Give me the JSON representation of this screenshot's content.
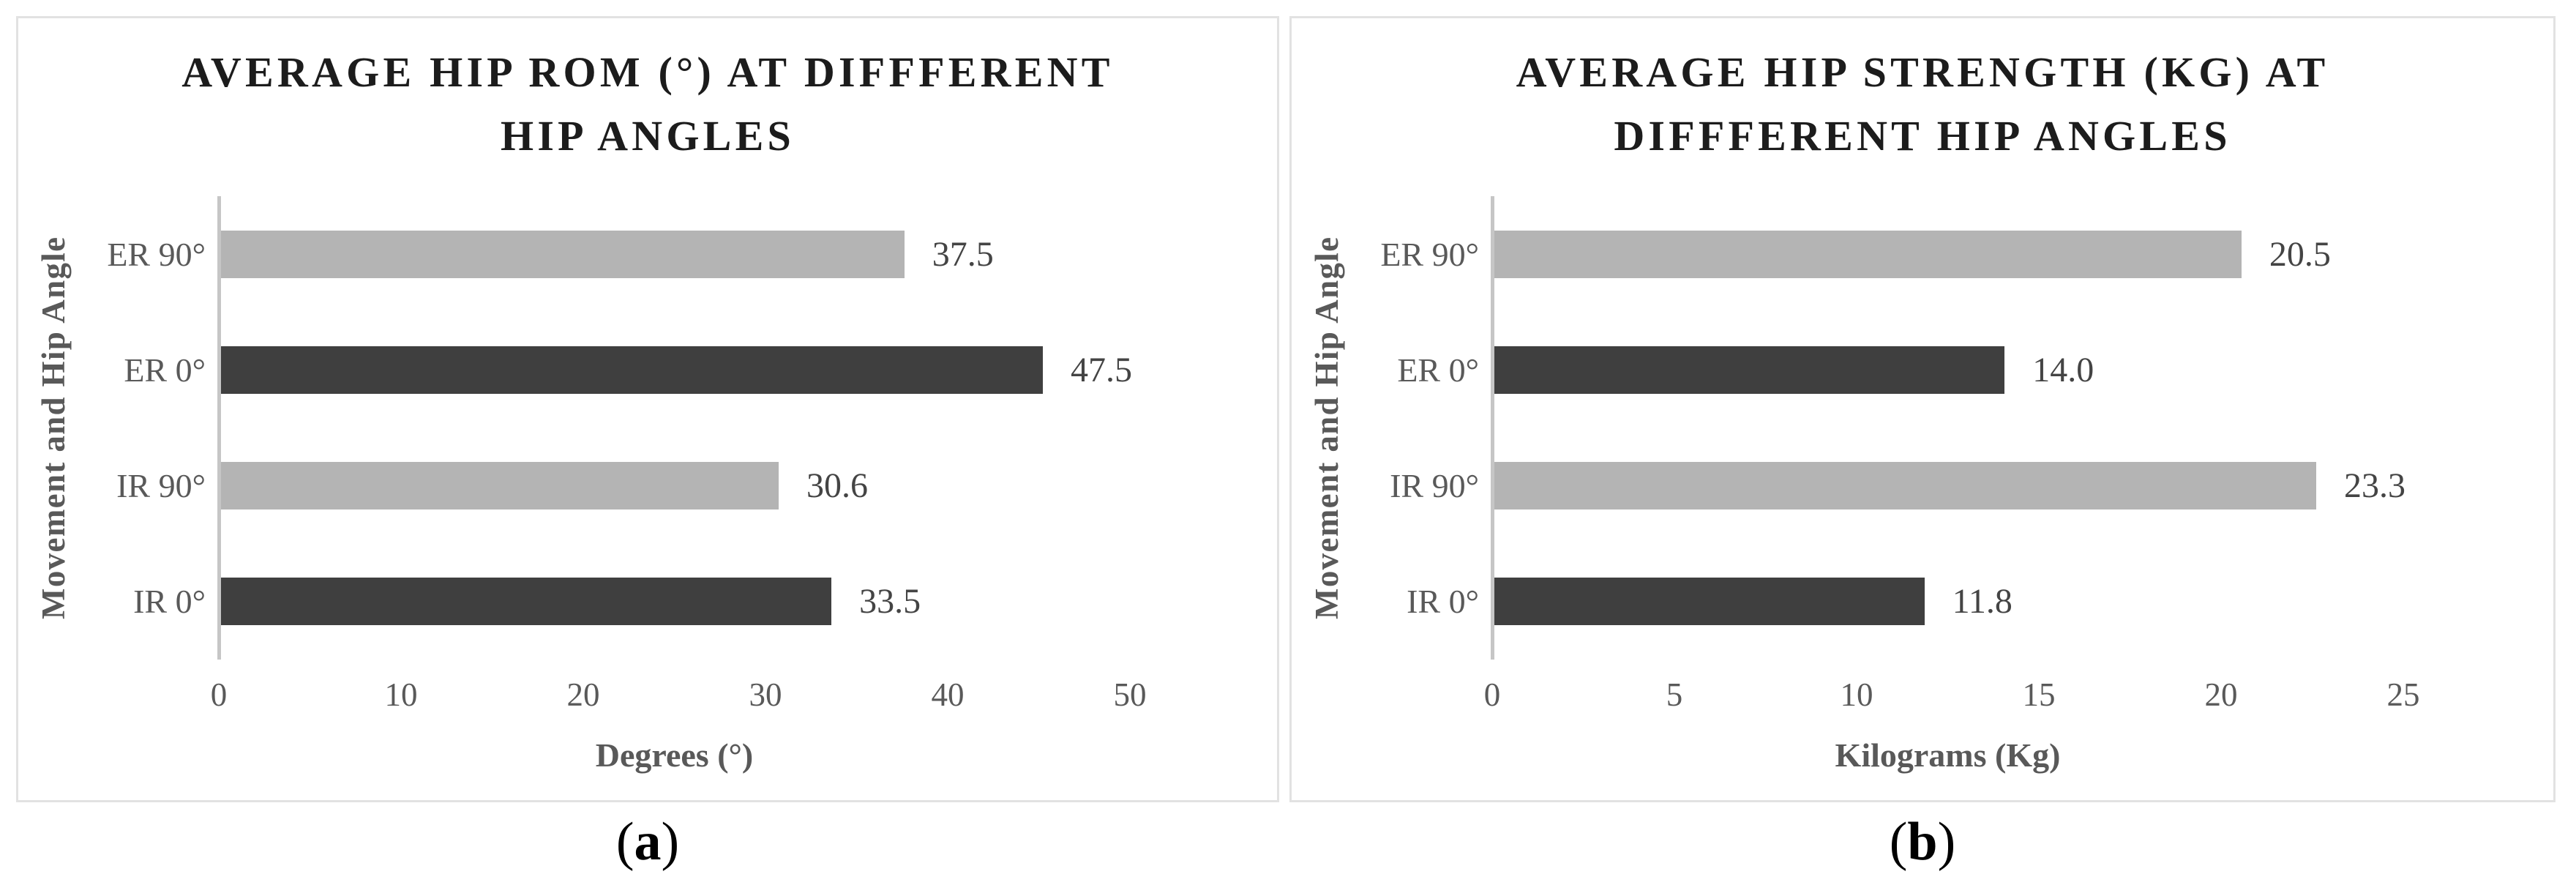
{
  "colors": {
    "bar_light": "#b4b4b4",
    "bar_dark": "#3f3f3f",
    "axis_line": "#c6c6c6",
    "axis_text": "#595959",
    "title_text": "#1c1c1c",
    "panel_border": "#e2e2e2"
  },
  "captions": [
    {
      "open": "(",
      "letter": "a",
      "close": ")"
    },
    {
      "open": "(",
      "letter": "b",
      "close": ")"
    }
  ],
  "chart_data": [
    {
      "type": "bar",
      "orientation": "horizontal",
      "title": "AVERAGE HIP ROM (°) AT DIFFFERENT HIP ANGLES",
      "title_lines": [
        "AVERAGE HIP ROM (°) AT DIFFFERENT",
        "HIP ANGLES"
      ],
      "ylabel": "Movement and Hip Angle",
      "xlabel": "Degrees (°)",
      "categories": [
        "ER 90°",
        "ER 0°",
        "IR 90°",
        "IR 0°"
      ],
      "values": [
        37.5,
        47.5,
        30.6,
        33.5
      ],
      "value_labels": [
        "37.5",
        "47.5",
        "30.6",
        "33.5"
      ],
      "bar_shades": [
        "light",
        "dark",
        "light",
        "dark"
      ],
      "xlim": [
        0,
        50
      ],
      "xticks": [
        "0",
        "10",
        "20",
        "30",
        "40",
        "50"
      ],
      "grid": false,
      "legend": false
    },
    {
      "type": "bar",
      "orientation": "horizontal",
      "title": "AVERAGE HIP STRENGTH (KG) AT DIFFFERENT HIP ANGLES",
      "title_lines": [
        "AVERAGE HIP STRENGTH (KG) AT",
        "DIFFFERENT HIP ANGLES"
      ],
      "ylabel": "Movement and Hip Angle",
      "xlabel": "Kilograms (Kg)",
      "categories": [
        "ER 90°",
        "ER 0°",
        "IR 90°",
        "IR 0°"
      ],
      "values": [
        20.5,
        14.0,
        23.3,
        11.8
      ],
      "value_labels": [
        "20.5",
        "14.0",
        "23.3",
        "11.8"
      ],
      "bar_shades": [
        "light",
        "dark",
        "light",
        "dark"
      ],
      "xlim": [
        0,
        25
      ],
      "xticks": [
        "0",
        "5",
        "10",
        "15",
        "20",
        "25"
      ],
      "grid": false,
      "legend": false
    }
  ]
}
